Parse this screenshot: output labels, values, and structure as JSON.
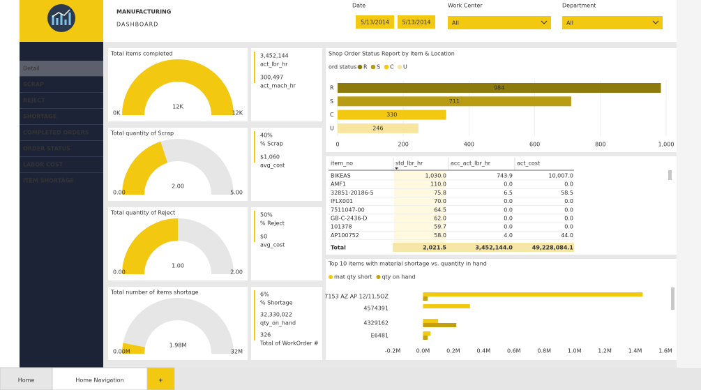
{
  "header": {
    "title": "MANUFACTURING",
    "subtitle": "DASHBOARD"
  },
  "filters": {
    "date": {
      "label": "Date",
      "from": "5/13/2014",
      "to": "5/13/2014"
    },
    "work_center": {
      "label": "Work Center",
      "value": "All"
    },
    "department": {
      "label": "Department",
      "value": "All"
    }
  },
  "nav": [
    "Detail",
    "SCRAP",
    "REJECT",
    "SHORTAGE",
    "COMPLETED ORDERS",
    "ORDER STATUS",
    "LABOR COST",
    "ITEM SHORTAGE"
  ],
  "gauges": [
    {
      "title": "Total items completed",
      "value": 12000,
      "value_label": "12K",
      "min": 0,
      "min_label": "0K",
      "max": 12000,
      "max_label": "12K"
    },
    {
      "title": "Total quantity of Scrap",
      "value": 2,
      "value_label": "2.00",
      "min": 0,
      "min_label": "0.00",
      "max": 5,
      "max_label": "5.00"
    },
    {
      "title": "Total quantity of Reject",
      "value": 1,
      "value_label": "1.00",
      "min": 0,
      "min_label": "0.00",
      "max": 2,
      "max_label": "2.00"
    },
    {
      "title": "Total number of items shortage",
      "value": 1980000,
      "value_label": "1.98M",
      "min": 0,
      "min_label": "0.00M",
      "max": 32000000,
      "max_label": "32M"
    }
  ],
  "cards": [
    [
      "3,452,144",
      "act_lbr_hr",
      "300,497",
      "act_mach_hr"
    ],
    [
      "40%",
      "% Scrap",
      "$1,060",
      "avg_cost"
    ],
    [
      "50%",
      "% Reject",
      "$0",
      "avg_cost"
    ],
    [
      "6%",
      "% Shortage",
      "32,330,022",
      "qty_on_hand",
      "326",
      "Total of WorkOrder #"
    ]
  ],
  "chart_data": [
    {
      "type": "bar",
      "title": "Shop Order Status Report by Item & Location",
      "legend_title": "ord status",
      "categories": [
        "R",
        "S",
        "C",
        "U"
      ],
      "values": [
        984,
        711,
        330,
        246
      ],
      "colors": [
        "#8c7a0c",
        "#b89d14",
        "#f2c811",
        "#f8e5a0"
      ],
      "xlim": [
        0,
        1000
      ],
      "xticks": [
        0,
        200,
        400,
        600,
        800,
        {
          "value": 1000,
          "label": "1,000"
        }
      ],
      "grid": true
    },
    {
      "type": "bar",
      "title": "Top 10 items with material shortage vs. quantity in hand",
      "categories": [
        "7153 AZ AP 12/11.5OZ",
        "4574391",
        "4329162",
        "E6481"
      ],
      "series": [
        {
          "name": "mat qty short",
          "color": "#f2c811",
          "values": [
            1450000,
            310000,
            100000,
            50000
          ]
        },
        {
          "name": "qty on hand",
          "color": "#c4a00e",
          "values": [
            30000,
            0,
            220000,
            30000
          ]
        }
      ],
      "xlim": [
        -200000,
        1600000
      ],
      "xticks": [
        {
          "value": -200000,
          "label": "-0.2M"
        },
        {
          "value": 0,
          "label": "0.0M"
        },
        {
          "value": 200000,
          "label": "0.2M"
        },
        {
          "value": 400000,
          "label": "0.4M"
        },
        {
          "value": 600000,
          "label": "0.6M"
        },
        {
          "value": 800000,
          "label": "0.8M"
        },
        {
          "value": 1000000,
          "label": "1.0M"
        },
        {
          "value": 1200000,
          "label": "1.2M"
        },
        {
          "value": 1400000,
          "label": "1.4M"
        },
        {
          "value": 1600000,
          "label": "1.6M"
        }
      ]
    }
  ],
  "table": {
    "columns": [
      "item_no",
      "std_lbr_hr",
      "acc_act_lbr_hr",
      "act_cost"
    ],
    "rows": [
      [
        "BIKEAS",
        "1,030.0",
        "743.9",
        "10,007.0"
      ],
      [
        "AMF1",
        "110.0",
        "0.0",
        "0.0"
      ],
      [
        "32851-20186-5",
        "75.8",
        "6.5",
        "58.5"
      ],
      [
        "IFLX001",
        "70.0",
        "0.0",
        "0.0"
      ],
      [
        "7511047-00",
        "64.5",
        "0.0",
        "0.0"
      ],
      [
        "GB-C-2436-D",
        "62.0",
        "0.0",
        "0.0"
      ],
      [
        "101378",
        "59.7",
        "0.0",
        "0.0"
      ],
      [
        "AP100752",
        "58.0",
        "4.0",
        "44.0"
      ]
    ],
    "total": [
      "Total",
      "2,021.5",
      "3,452,144.0",
      "49,228,084.1"
    ]
  },
  "tabs": [
    "Home",
    "Home Navigation",
    "+"
  ]
}
